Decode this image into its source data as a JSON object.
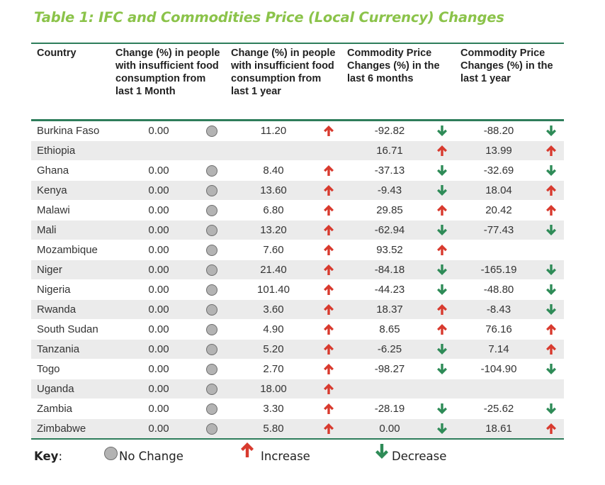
{
  "title": "Table 1: IFC and Commodities Price (Local Currency) Changes",
  "headers": {
    "country": "Country",
    "col1": "Change (%) in people with insufficient food consumption from last 1 Month",
    "col2": "Change (%) in people with insufficient food consumption from last 1 year",
    "col3": "Commodity Price Changes (%) in the last 6 months",
    "col4": "Commodity Price Changes (%) in the last 1 year"
  },
  "colors": {
    "title": "#8bc34a",
    "rule": "#2e7d5b",
    "increase": "#d83a2e",
    "decrease": "#2e8b57",
    "no_change": "#b3b3b3",
    "alt_row": "#ebebeb"
  },
  "rows": [
    {
      "country": "Burkina Faso",
      "m1": "0.00",
      "m1_trend": "none",
      "y1": "11.20",
      "y1_trend": "up",
      "p6": "-92.82",
      "p6_trend": "down",
      "p12": "-88.20",
      "p12_trend": "down"
    },
    {
      "country": "Ethiopia",
      "m1": "",
      "m1_trend": "",
      "y1": "",
      "y1_trend": "",
      "p6": "16.71",
      "p6_trend": "up",
      "p12": "13.99",
      "p12_trend": "up"
    },
    {
      "country": "Ghana",
      "m1": "0.00",
      "m1_trend": "none",
      "y1": "8.40",
      "y1_trend": "up",
      "p6": "-37.13",
      "p6_trend": "down",
      "p12": "-32.69",
      "p12_trend": "down"
    },
    {
      "country": "Kenya",
      "m1": "0.00",
      "m1_trend": "none",
      "y1": "13.60",
      "y1_trend": "up",
      "p6": "-9.43",
      "p6_trend": "down",
      "p12": "18.04",
      "p12_trend": "up"
    },
    {
      "country": "Malawi",
      "m1": "0.00",
      "m1_trend": "none",
      "y1": "6.80",
      "y1_trend": "up",
      "p6": "29.85",
      "p6_trend": "up",
      "p12": "20.42",
      "p12_trend": "up"
    },
    {
      "country": "Mali",
      "m1": "0.00",
      "m1_trend": "none",
      "y1": "13.20",
      "y1_trend": "up",
      "p6": "-62.94",
      "p6_trend": "down",
      "p12": "-77.43",
      "p12_trend": "down"
    },
    {
      "country": "Mozambique",
      "m1": "0.00",
      "m1_trend": "none",
      "y1": "7.60",
      "y1_trend": "up",
      "p6": "93.52",
      "p6_trend": "up",
      "p12": "",
      "p12_trend": ""
    },
    {
      "country": "Niger",
      "m1": "0.00",
      "m1_trend": "none",
      "y1": "21.40",
      "y1_trend": "up",
      "p6": "-84.18",
      "p6_trend": "down",
      "p12": "-165.19",
      "p12_trend": "down"
    },
    {
      "country": "Nigeria",
      "m1": "0.00",
      "m1_trend": "none",
      "y1": "101.40",
      "y1_trend": "up",
      "p6": "-44.23",
      "p6_trend": "down",
      "p12": "-48.80",
      "p12_trend": "down"
    },
    {
      "country": "Rwanda",
      "m1": "0.00",
      "m1_trend": "none",
      "y1": "3.60",
      "y1_trend": "up",
      "p6": "18.37",
      "p6_trend": "up",
      "p12": "-8.43",
      "p12_trend": "down"
    },
    {
      "country": "South Sudan",
      "m1": "0.00",
      "m1_trend": "none",
      "y1": "4.90",
      "y1_trend": "up",
      "p6": "8.65",
      "p6_trend": "up",
      "p12": "76.16",
      "p12_trend": "up"
    },
    {
      "country": "Tanzania",
      "m1": "0.00",
      "m1_trend": "none",
      "y1": "5.20",
      "y1_trend": "up",
      "p6": "-6.25",
      "p6_trend": "down",
      "p12": "7.14",
      "p12_trend": "up"
    },
    {
      "country": "Togo",
      "m1": "0.00",
      "m1_trend": "none",
      "y1": "2.70",
      "y1_trend": "up",
      "p6": "-98.27",
      "p6_trend": "down",
      "p12": "-104.90",
      "p12_trend": "down"
    },
    {
      "country": "Uganda",
      "m1": "0.00",
      "m1_trend": "none",
      "y1": "18.00",
      "y1_trend": "up",
      "p6": "",
      "p6_trend": "",
      "p12": "",
      "p12_trend": ""
    },
    {
      "country": "Zambia",
      "m1": "0.00",
      "m1_trend": "none",
      "y1": "3.30",
      "y1_trend": "up",
      "p6": "-28.19",
      "p6_trend": "down",
      "p12": "-25.62",
      "p12_trend": "down"
    },
    {
      "country": "Zimbabwe",
      "m1": "0.00",
      "m1_trend": "none",
      "y1": "5.80",
      "y1_trend": "up",
      "p6": "0.00",
      "p6_trend": "down",
      "p12": "18.61",
      "p12_trend": "up"
    }
  ],
  "key": {
    "label": "Key",
    "no_change": "No Change",
    "increase": "Increase",
    "decrease": "Decrease",
    "no_change_icon": "grey-circle-icon",
    "increase_icon": "red-up-arrow-icon",
    "decrease_icon": "green-down-arrow-icon"
  }
}
